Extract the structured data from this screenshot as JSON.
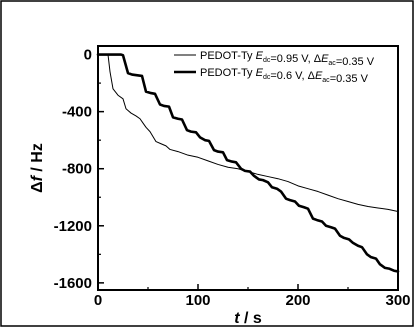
{
  "chart_data": {
    "type": "line",
    "xlabel": "t / s",
    "ylabel": "Δf / Hz",
    "xlim": [
      0,
      300
    ],
    "ylim": [
      -1650,
      60
    ],
    "xticks": [
      0,
      100,
      200,
      300
    ],
    "yticks": [
      0,
      -400,
      -800,
      -1200,
      -1600
    ],
    "x_tick_labels": [
      "0",
      "100",
      "200",
      "300"
    ],
    "y_tick_labels": [
      "0",
      "-400",
      "-800",
      "-1200",
      "-1600"
    ],
    "grid": false,
    "legend_position": "top-right",
    "series": [
      {
        "name": "PEDOT-Ty E_dc=0.95 V, ΔE_ac=0.35 V",
        "legend_label": {
          "prefix": "PEDOT-Ty ",
          "e": "E",
          "dc": "dc",
          "mid": "=0.95 V, Δ",
          "ac": "ac",
          "suffix": "=0.35 V"
        },
        "color": "#000000",
        "line_width": "thin",
        "x": [
          0,
          10,
          12,
          15,
          20,
          25,
          28,
          33,
          38,
          42,
          45,
          48,
          52,
          58,
          63,
          68,
          72,
          80,
          90,
          100,
          110,
          120,
          130,
          140,
          150,
          160,
          170,
          180,
          190,
          200,
          210,
          220,
          230,
          240,
          250,
          260,
          270,
          280,
          290,
          300
        ],
        "y": [
          0,
          0,
          -120,
          -240,
          -285,
          -310,
          -380,
          -410,
          -430,
          -450,
          -480,
          -510,
          -540,
          -610,
          -625,
          -640,
          -665,
          -680,
          -705,
          -720,
          -745,
          -770,
          -790,
          -800,
          -820,
          -840,
          -855,
          -870,
          -890,
          -920,
          -940,
          -960,
          -985,
          -1010,
          -1030,
          -1050,
          -1065,
          -1075,
          -1085,
          -1100
        ]
      },
      {
        "name": "PEDOT-Ty E_dc=0.6 V, ΔE_ac=0.35 V",
        "legend_label": {
          "prefix": "PEDOT-Ty ",
          "e": "E",
          "dc": "dc",
          "mid": "=0.6 V, Δ",
          "ac": "ac",
          "suffix": "=0.35 V"
        },
        "color": "#000000",
        "line_width": "thick",
        "x": [
          0,
          23,
          25,
          30,
          34,
          44,
          48,
          53,
          57,
          62,
          66,
          71,
          75,
          80,
          84,
          89,
          93,
          98,
          102,
          107,
          111,
          116,
          120,
          125,
          129,
          134,
          138,
          143,
          147,
          152,
          156,
          161,
          165,
          170,
          174,
          179,
          183,
          188,
          192,
          197,
          201,
          206,
          210,
          215,
          219,
          224,
          228,
          233,
          237,
          242,
          246,
          251,
          255,
          260,
          264,
          269,
          273,
          278,
          282,
          287,
          291,
          296,
          300
        ],
        "y": [
          0,
          0,
          -5,
          -130,
          -140,
          -150,
          -260,
          -270,
          -275,
          -350,
          -360,
          -365,
          -440,
          -450,
          -455,
          -530,
          -540,
          -545,
          -580,
          -600,
          -605,
          -670,
          -680,
          -685,
          -740,
          -750,
          -755,
          -800,
          -815,
          -820,
          -850,
          -875,
          -880,
          -895,
          -930,
          -940,
          -960,
          -1010,
          -1020,
          -1030,
          -1060,
          -1070,
          -1080,
          -1150,
          -1160,
          -1170,
          -1200,
          -1210,
          -1220,
          -1270,
          -1285,
          -1295,
          -1320,
          -1340,
          -1350,
          -1400,
          -1420,
          -1430,
          -1470,
          -1495,
          -1500,
          -1515,
          -1520
        ]
      }
    ]
  }
}
